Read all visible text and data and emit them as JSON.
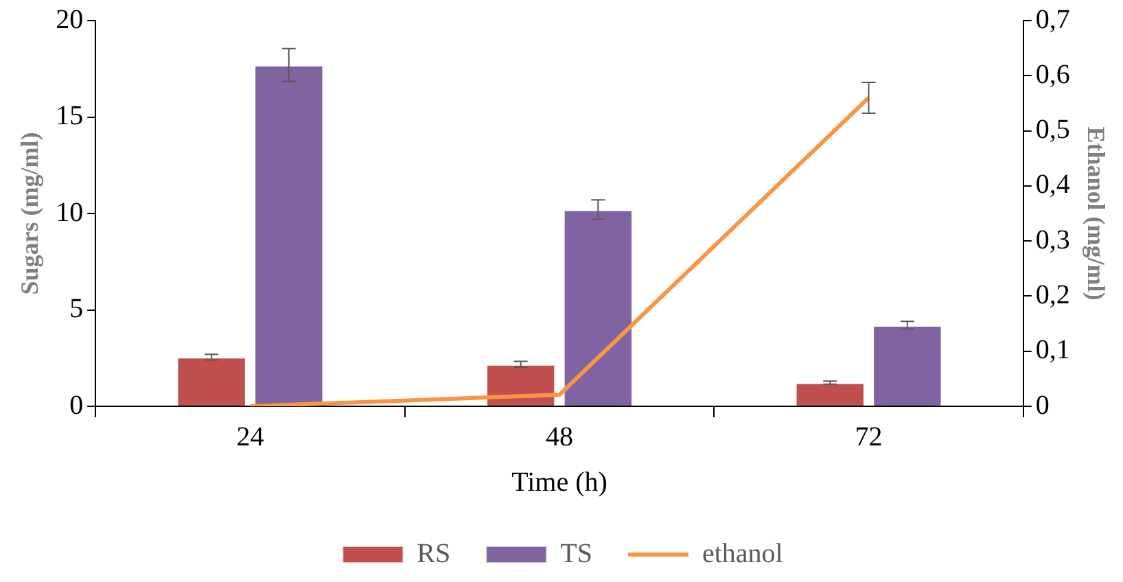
{
  "chart_data": {
    "type": "bar",
    "xlabel": "Time (h)",
    "ylabel": "Sugars (mg/ml)",
    "y2label": "Ethanol (mg/ml)",
    "categories": [
      "24",
      "48",
      "72"
    ],
    "series": [
      {
        "name": "RS",
        "color": "#c0504d",
        "values": [
          2.55,
          2.18,
          1.23
        ],
        "errors": [
          0.15,
          0.15,
          0.08
        ]
      },
      {
        "name": "TS",
        "color": "#8064a2",
        "values": [
          17.7,
          10.2,
          4.2
        ],
        "errors": [
          0.85,
          0.5,
          0.2
        ]
      },
      {
        "name": "ethanol",
        "type": "line",
        "axis": "y2",
        "color": "#f79646",
        "values": [
          0,
          0.021,
          0.56
        ],
        "errors": [
          null,
          null,
          0.028
        ]
      }
    ],
    "ylim": [
      0,
      20
    ],
    "yticks": [
      0,
      5,
      10,
      15,
      20
    ],
    "y2lim": [
      0,
      0.7
    ],
    "y2ticks": [
      0,
      {
        "value": 0.1,
        "label": "0,1"
      },
      {
        "value": 0.2,
        "label": "0,2"
      },
      {
        "value": 0.3,
        "label": "0,3"
      },
      {
        "value": 0.4,
        "label": "0,4"
      },
      {
        "value": 0.5,
        "label": "0,5"
      },
      {
        "value": 0.6,
        "label": "0,6"
      },
      {
        "value": 0.7,
        "label": "0,7"
      }
    ],
    "grid": false,
    "legend": "bottom",
    "marker": "none",
    "line_style": "solid"
  }
}
